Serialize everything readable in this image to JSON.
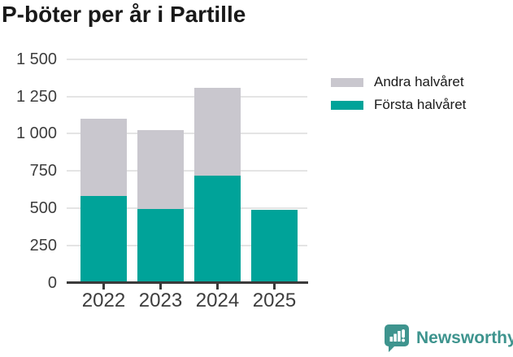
{
  "title": "P-böter per år i Partille",
  "chart_data": {
    "type": "bar",
    "stacked": true,
    "title": "P-böter per år i Partille",
    "xlabel": "",
    "ylabel": "",
    "categories": [
      "2022",
      "2023",
      "2024",
      "2025"
    ],
    "series": [
      {
        "name": "Första halvåret",
        "color": "#00a399",
        "values": [
          585,
          495,
          720,
          490
        ]
      },
      {
        "name": "Andra halvåret",
        "color": "#c9c7ce",
        "values": [
          515,
          530,
          590,
          0
        ]
      }
    ],
    "totals": [
      1100,
      1025,
      1310,
      490
    ],
    "ylim": [
      0,
      1500
    ],
    "y_tick_step": 250,
    "y_tick_labels": [
      "0",
      "250",
      "500",
      "750",
      "1 000",
      "1 250",
      "1 500"
    ],
    "grid": true,
    "legend_position": "right"
  },
  "legend": {
    "items": [
      {
        "label": "Andra halvåret",
        "color": "#c9c7ce"
      },
      {
        "label": "Första halvåret",
        "color": "#00a399"
      }
    ]
  },
  "branding": {
    "name": "Newsworthy",
    "color": "#3e948e"
  },
  "colors": {
    "first_half": "#00a399",
    "second_half": "#c9c7ce",
    "gridline": "#e4e4e4",
    "axis": "#3a3a3a",
    "tick_text": "#3d3d3d",
    "title_text": "#191919"
  }
}
